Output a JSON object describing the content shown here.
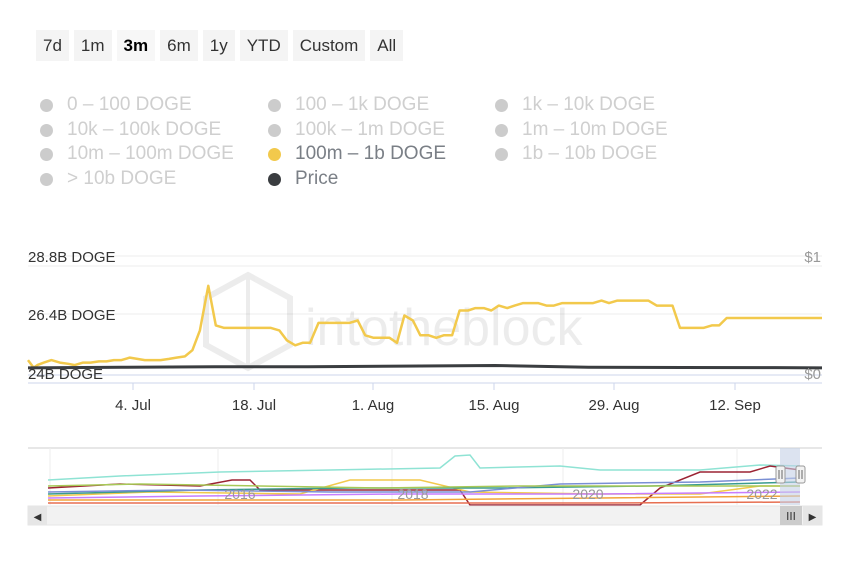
{
  "range_selector": {
    "buttons": [
      "7d",
      "1m",
      "3m",
      "6m",
      "1y",
      "YTD",
      "Custom",
      "All"
    ],
    "active": "3m"
  },
  "legend": {
    "items": [
      {
        "label": "0 – 100 DOGE",
        "state": "off"
      },
      {
        "label": "100 – 1k DOGE",
        "state": "off"
      },
      {
        "label": "1k – 10k DOGE",
        "state": "off"
      },
      {
        "label": "10k – 100k DOGE",
        "state": "off"
      },
      {
        "label": "100k – 1m DOGE",
        "state": "off"
      },
      {
        "label": "1m – 10m DOGE",
        "state": "off"
      },
      {
        "label": "10m – 100m DOGE",
        "state": "off"
      },
      {
        "label": "100m – 1b DOGE",
        "state": "on",
        "color": "#f2c94c"
      },
      {
        "label": "1b – 10b DOGE",
        "state": "off"
      },
      {
        "label": "> 10b DOGE",
        "state": "off"
      },
      {
        "label": "Price",
        "state": "on",
        "color": "#3a3d40"
      }
    ]
  },
  "watermark": "intotheblock",
  "chart_data": {
    "type": "line",
    "x_tick_labels": [
      "4. Jul",
      "18. Jul",
      "1. Aug",
      "15. Aug",
      "29. Aug",
      "12. Sep"
    ],
    "y_left_ticks": [
      "24B DOGE",
      "26.4B DOGE",
      "28.8B DOGE"
    ],
    "y_left_range_billion_doge": [
      24,
      28.8
    ],
    "y_right_ticks": [
      "$0",
      "$1"
    ],
    "y_right_range_usd": [
      0,
      1
    ],
    "grid": true,
    "series": [
      {
        "name": "100m – 1b DOGE",
        "axis": "left",
        "color": "#f2c94c",
        "x_days_from_jun27": [
          0,
          0.6,
          1,
          1.7,
          2.5,
          3.4,
          4.3,
          5,
          5.9,
          6.7,
          7.6,
          8.4,
          9.2,
          10,
          10.9,
          11.7,
          12.5,
          13.4,
          14.2,
          15.1,
          15.9,
          16.8,
          17.6,
          18.4,
          19.3,
          20.1,
          21,
          21.8,
          22.2,
          22.7,
          23.5,
          24.3,
          25.2,
          26,
          26.9,
          27.7,
          28.6,
          29.4,
          30.2,
          31.1,
          31.9,
          32.8,
          33.6,
          34.4,
          35.3,
          36.1,
          37,
          37.8,
          38.7,
          39.5,
          40.3,
          41.2,
          42,
          42.9,
          43.7,
          44.5,
          45.4,
          46.2,
          47.1,
          47.9,
          48.8,
          49.6,
          50.4,
          51.3,
          52.1,
          53,
          53.8,
          54.6,
          55.5,
          56.3,
          57.2,
          58,
          58.9,
          59.7,
          60.5,
          61.4,
          62.2,
          63.1,
          63.9,
          64.7,
          65.6,
          66.4,
          67.3,
          68.1,
          69,
          69.8,
          70.6,
          71.5,
          72.3,
          73.2,
          74,
          74.8,
          75.7,
          76.5,
          77.4,
          78.2,
          79.1,
          79.9,
          80.7,
          81.6,
          82.4,
          83.3,
          84.1,
          85
        ],
        "values_billion_doge": [
          24.6,
          24.3,
          24.4,
          24.5,
          24.6,
          24.5,
          24.45,
          24.4,
          24.5,
          24.5,
          24.55,
          24.55,
          24.6,
          24.6,
          24.7,
          24.65,
          24.6,
          24.6,
          24.6,
          24.65,
          24.7,
          24.75,
          25.0,
          25.8,
          27.6,
          26.0,
          25.9,
          25.9,
          25.9,
          25.9,
          25.9,
          25.9,
          25.9,
          25.9,
          25.8,
          25.4,
          25.2,
          25.3,
          25.3,
          26.1,
          26.1,
          26.1,
          26.1,
          26.1,
          26.2,
          25.6,
          25.5,
          25.5,
          25.5,
          25.3,
          26.4,
          26.2,
          25.6,
          25.6,
          25.5,
          25.6,
          25.6,
          26.6,
          26.6,
          26.7,
          26.7,
          26.6,
          26.8,
          26.7,
          26.8,
          26.9,
          26.9,
          26.9,
          26.8,
          26.8,
          26.9,
          26.9,
          26.9,
          26.9,
          26.9,
          27.0,
          26.9,
          27.0,
          27.0,
          27.0,
          27.0,
          27.0,
          26.8,
          26.8,
          26.8,
          25.9,
          25.9,
          25.9,
          25.9,
          26.0,
          26.0,
          26.3,
          26.3,
          26.3,
          26.3,
          26.3,
          26.3,
          26.3,
          26.3,
          26.3,
          26.3,
          26.3,
          26.3,
          26.3
        ],
        "note_shape": "rises ~24.5B early July, spike near 19 Jul, plateau ~26.9B late Aug–Sep, ends ~26.4B"
      },
      {
        "name": "Price",
        "axis": "right",
        "color": "#3a3d40",
        "x_days_from_jun27": [
          0,
          10,
          20,
          30,
          40,
          50,
          60,
          70,
          80,
          85
        ],
        "values_usd": [
          0.06,
          0.065,
          0.07,
          0.07,
          0.075,
          0.08,
          0.065,
          0.063,
          0.062,
          0.06
        ]
      }
    ]
  },
  "navigator": {
    "year_labels": [
      "2016",
      "2018",
      "2020",
      "2022"
    ],
    "scroll_left_label": "◀",
    "scroll_right_label": "▶",
    "scroll_thumb_label": "III"
  }
}
